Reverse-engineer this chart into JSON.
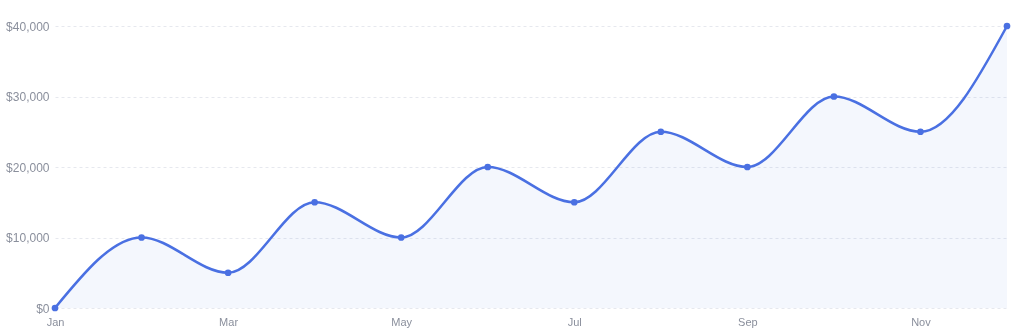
{
  "chart_data": {
    "type": "area",
    "categories": [
      "Jan",
      null,
      "Mar",
      null,
      "May",
      null,
      "Jul",
      null,
      "Sep",
      null,
      "Nov",
      null
    ],
    "series": [
      {
        "color": "#4a70e2",
        "values": [
          0,
          10000,
          5000,
          15000,
          10000,
          20000,
          15000,
          25000,
          20000,
          30000,
          25000,
          40000
        ]
      }
    ],
    "ylim": [
      0,
      40000
    ],
    "yticks": [
      {
        "value": 0,
        "label": "$0"
      },
      {
        "value": 10000,
        "label": "$10,000"
      },
      {
        "value": 20000,
        "label": "$20,000"
      },
      {
        "value": 30000,
        "label": "$30,000"
      },
      {
        "value": 40000,
        "label": "$40,000"
      }
    ],
    "grid": "y",
    "marker": "circle",
    "line_style": "solid"
  }
}
